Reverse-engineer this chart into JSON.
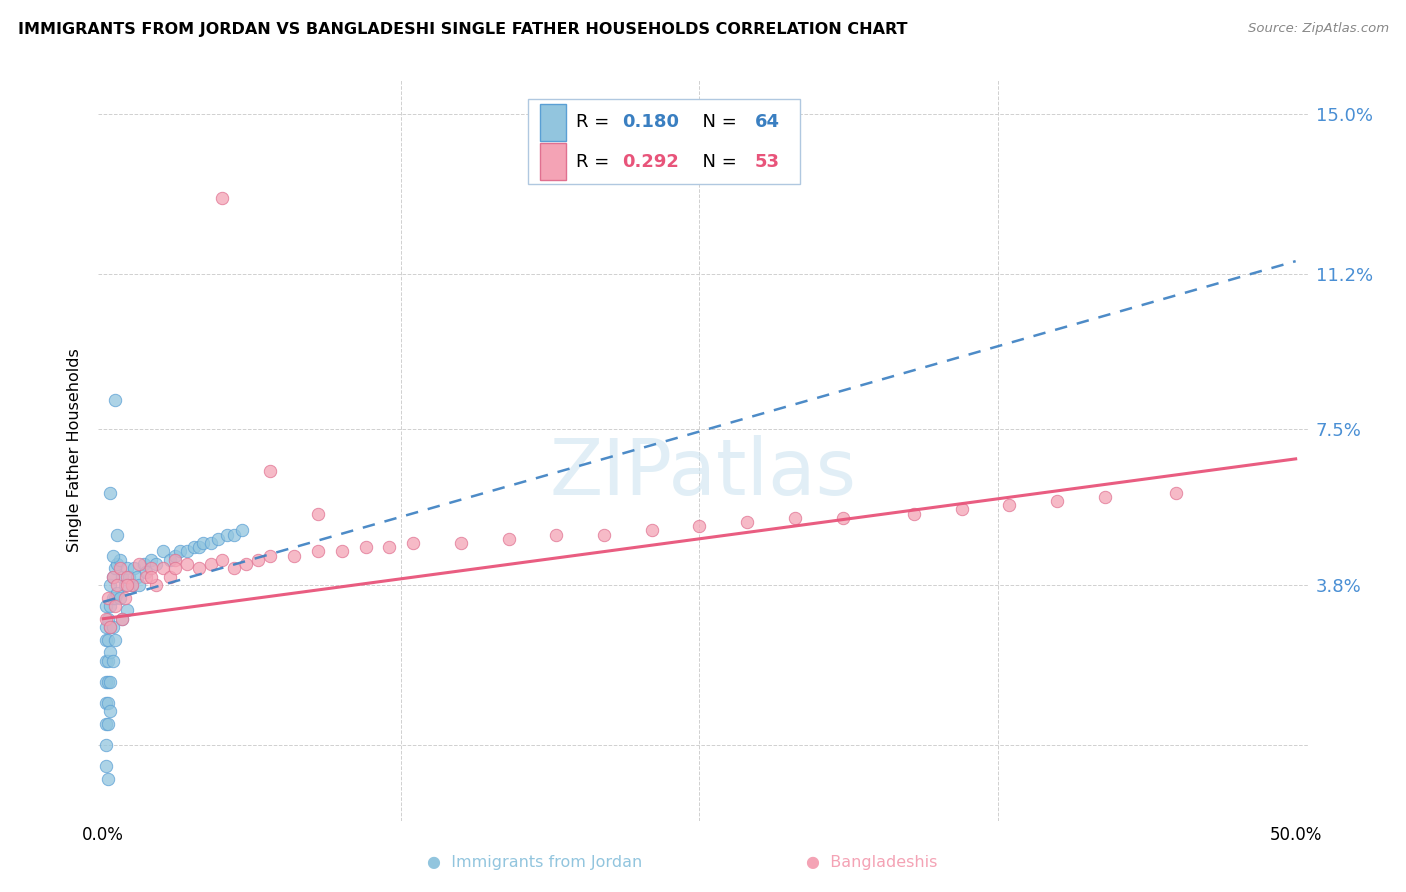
{
  "title": "IMMIGRANTS FROM JORDAN VS BANGLADESHI SINGLE FATHER HOUSEHOLDS CORRELATION CHART",
  "source": "Source: ZipAtlas.com",
  "ylabel": "Single Father Households",
  "yticks": [
    0.0,
    0.038,
    0.075,
    0.112,
    0.15
  ],
  "ytick_labels": [
    "",
    "3.8%",
    "7.5%",
    "11.2%",
    "15.0%"
  ],
  "xlim": [
    0.0,
    0.5
  ],
  "ylim": [
    -0.018,
    0.158
  ],
  "blue_color": "#92c5de",
  "blue_edge_color": "#5a9fd4",
  "pink_color": "#f4a3b5",
  "pink_edge_color": "#e07090",
  "blue_line_color": "#3a7fc1",
  "pink_line_color": "#e8547a",
  "watermark_color": "#cde4f0",
  "blue_trend_x0": 0.0,
  "blue_trend_y0": 0.034,
  "blue_trend_x1": 0.5,
  "blue_trend_y1": 0.115,
  "pink_trend_x0": 0.0,
  "pink_trend_y0": 0.03,
  "pink_trend_x1": 0.5,
  "pink_trend_y1": 0.068,
  "jordan_x": [
    0.001,
    0.001,
    0.001,
    0.001,
    0.001,
    0.001,
    0.001,
    0.001,
    0.001,
    0.002,
    0.002,
    0.002,
    0.002,
    0.002,
    0.002,
    0.002,
    0.003,
    0.003,
    0.003,
    0.003,
    0.003,
    0.003,
    0.004,
    0.004,
    0.004,
    0.004,
    0.005,
    0.005,
    0.005,
    0.006,
    0.006,
    0.007,
    0.007,
    0.008,
    0.008,
    0.009,
    0.01,
    0.01,
    0.011,
    0.012,
    0.013,
    0.014,
    0.015,
    0.017,
    0.018,
    0.02,
    0.022,
    0.025,
    0.028,
    0.03,
    0.032,
    0.035,
    0.038,
    0.04,
    0.042,
    0.045,
    0.048,
    0.052,
    0.055,
    0.058,
    0.005,
    0.006,
    0.003,
    0.004
  ],
  "jordan_y": [
    0.033,
    0.028,
    0.025,
    0.02,
    0.015,
    0.01,
    0.005,
    0.0,
    -0.005,
    -0.008,
    0.03,
    0.025,
    0.02,
    0.015,
    0.01,
    0.005,
    0.038,
    0.033,
    0.028,
    0.022,
    0.015,
    0.008,
    0.04,
    0.035,
    0.028,
    0.02,
    0.042,
    0.035,
    0.025,
    0.043,
    0.036,
    0.044,
    0.035,
    0.04,
    0.03,
    0.038,
    0.042,
    0.032,
    0.04,
    0.038,
    0.042,
    0.04,
    0.038,
    0.043,
    0.041,
    0.044,
    0.043,
    0.046,
    0.044,
    0.045,
    0.046,
    0.046,
    0.047,
    0.047,
    0.048,
    0.048,
    0.049,
    0.05,
    0.05,
    0.051,
    0.082,
    0.05,
    0.06,
    0.045
  ],
  "bangladesh_x": [
    0.001,
    0.002,
    0.003,
    0.004,
    0.005,
    0.006,
    0.007,
    0.008,
    0.009,
    0.01,
    0.012,
    0.015,
    0.018,
    0.02,
    0.022,
    0.025,
    0.028,
    0.03,
    0.035,
    0.04,
    0.045,
    0.05,
    0.055,
    0.06,
    0.065,
    0.07,
    0.08,
    0.09,
    0.1,
    0.11,
    0.12,
    0.13,
    0.15,
    0.17,
    0.19,
    0.21,
    0.23,
    0.25,
    0.27,
    0.29,
    0.31,
    0.34,
    0.36,
    0.38,
    0.4,
    0.42,
    0.45,
    0.01,
    0.02,
    0.03,
    0.05,
    0.07,
    0.09
  ],
  "bangladesh_y": [
    0.03,
    0.035,
    0.028,
    0.04,
    0.033,
    0.038,
    0.042,
    0.03,
    0.035,
    0.04,
    0.038,
    0.043,
    0.04,
    0.042,
    0.038,
    0.042,
    0.04,
    0.044,
    0.043,
    0.042,
    0.043,
    0.044,
    0.042,
    0.043,
    0.044,
    0.045,
    0.045,
    0.046,
    0.046,
    0.047,
    0.047,
    0.048,
    0.048,
    0.049,
    0.05,
    0.05,
    0.051,
    0.052,
    0.053,
    0.054,
    0.054,
    0.055,
    0.056,
    0.057,
    0.058,
    0.059,
    0.06,
    0.038,
    0.04,
    0.042,
    0.13,
    0.065,
    0.055
  ]
}
